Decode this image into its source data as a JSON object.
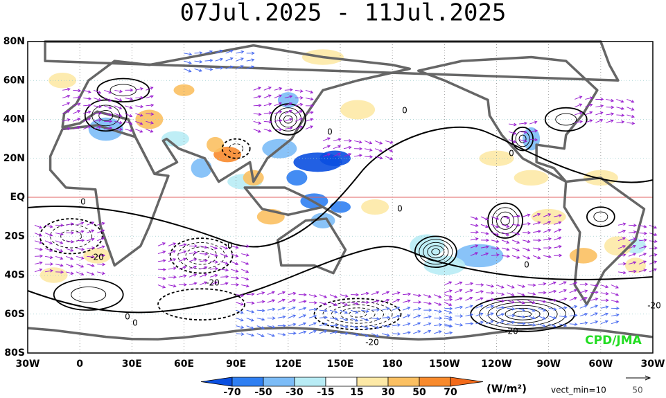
{
  "title": "07Jul.2025 - 11Jul.2025",
  "lat_labels": [
    "80N",
    "60N",
    "40N",
    "20N",
    "EQ",
    "20S",
    "40S",
    "60S",
    "80S"
  ],
  "lon_labels": [
    "30W",
    "0",
    "30E",
    "60E",
    "90E",
    "120E",
    "150E",
    "180",
    "150W",
    "120W",
    "90W",
    "60W",
    "30W"
  ],
  "colorbar": {
    "ticks": [
      -70,
      -50,
      -30,
      -15,
      15,
      30,
      50,
      70
    ],
    "colors": [
      "#0a4fe0",
      "#2f7ff2",
      "#7cbcf7",
      "#b8ecf5",
      "#ffffff",
      "#fde9a6",
      "#fbc062",
      "#f88a2c",
      "#f36a1a"
    ]
  },
  "units": "(W/m²)",
  "vector_note": "vect_min=10",
  "reference_vector_label": "50",
  "credit": "CPD/JMA",
  "contour_labels": [
    "0",
    "-20",
    "-20",
    "0",
    "0",
    "0",
    "0",
    "0",
    "0",
    "0",
    "0",
    "-20",
    "-20",
    "-20"
  ]
}
